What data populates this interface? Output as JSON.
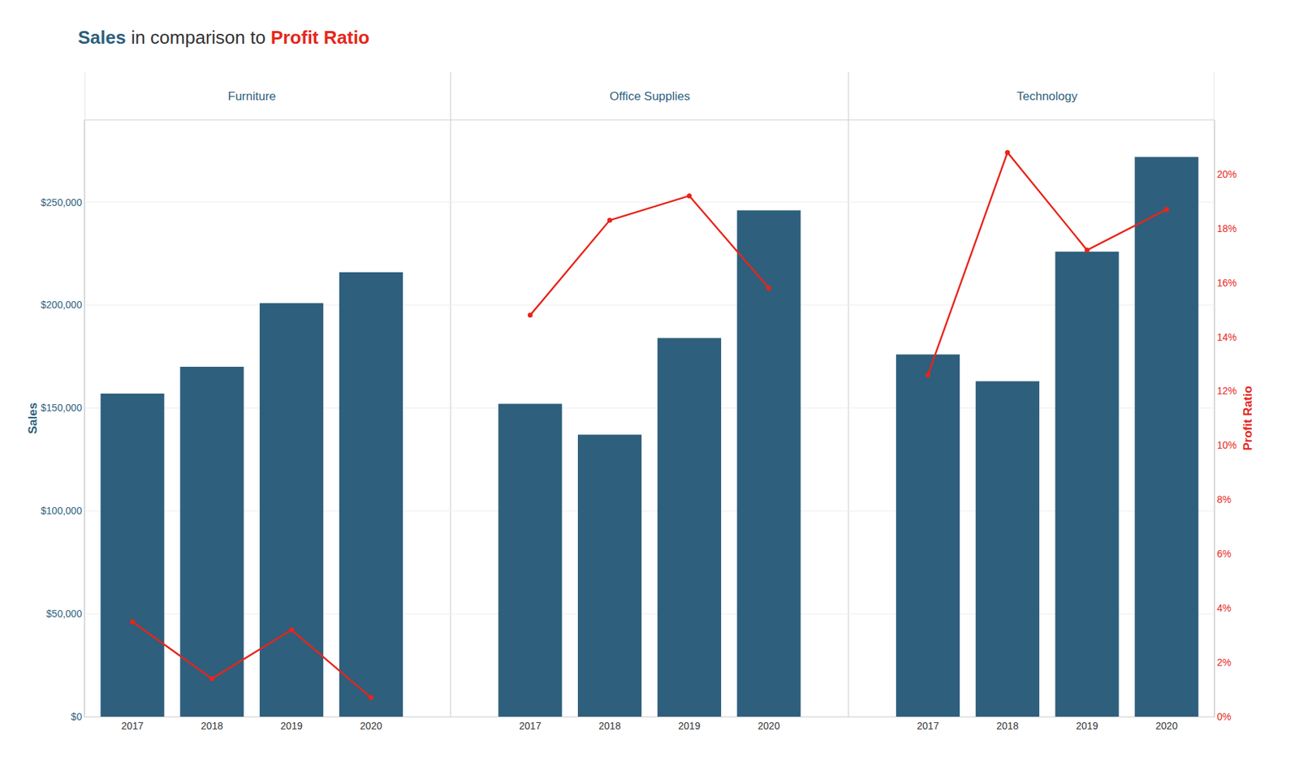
{
  "chart_data": {
    "type": "bar",
    "title": "Sales in comparison to Profit Ratio",
    "categories": [
      [
        "Furniture",
        "2017"
      ],
      [
        "Furniture",
        "2018"
      ],
      [
        "Furniture",
        "2019"
      ],
      [
        "Furniture",
        "2020"
      ],
      [
        "Office Supplies",
        "2017"
      ],
      [
        "Office Supplies",
        "2018"
      ],
      [
        "Office Supplies",
        "2019"
      ],
      [
        "Office Supplies",
        "2020"
      ],
      [
        "Technology",
        "2017"
      ],
      [
        "Technology",
        "2018"
      ],
      [
        "Technology",
        "2019"
      ],
      [
        "Technology",
        "2020"
      ]
    ],
    "series": [
      {
        "name": "Sales",
        "type": "bar",
        "color": "#2e5f7d",
        "values": [
          157000,
          170000,
          201000,
          216000,
          152000,
          137000,
          184000,
          246000,
          176000,
          163000,
          226000,
          272000
        ]
      },
      {
        "name": "Profit Ratio",
        "type": "line",
        "axis": "y2",
        "color": "#e8251a",
        "marker": "circle",
        "values": [
          0.035,
          0.014,
          0.032,
          0.007,
          0.148,
          0.183,
          0.192,
          0.158,
          0.126,
          0.208,
          0.172,
          0.187
        ]
      }
    ],
    "ylabel": "Sales",
    "y2label": "Profit Ratio",
    "ylim": [
      0,
      290000
    ],
    "yticks": [
      {
        "value": 0,
        "label": "$0"
      },
      {
        "value": 50000,
        "label": "$50,000"
      },
      {
        "value": 100000,
        "label": "$100,000"
      },
      {
        "value": 150000,
        "label": "$150,000"
      },
      {
        "value": 200000,
        "label": "$200,000"
      },
      {
        "value": 250000,
        "label": "$250,000"
      }
    ],
    "y2lim": [
      0,
      0.22
    ],
    "y2ticks": [
      {
        "value": 0.0,
        "label": "0%"
      },
      {
        "value": 0.02,
        "label": "2%"
      },
      {
        "value": 0.04,
        "label": "4%"
      },
      {
        "value": 0.06,
        "label": "6%"
      },
      {
        "value": 0.08,
        "label": "8%"
      },
      {
        "value": 0.1,
        "label": "10%"
      },
      {
        "value": 0.12,
        "label": "12%"
      },
      {
        "value": 0.14,
        "label": "14%"
      },
      {
        "value": 0.16,
        "label": "16%"
      },
      {
        "value": 0.18,
        "label": "18%"
      },
      {
        "value": 0.2,
        "label": "20%"
      }
    ],
    "grid": true
  }
}
